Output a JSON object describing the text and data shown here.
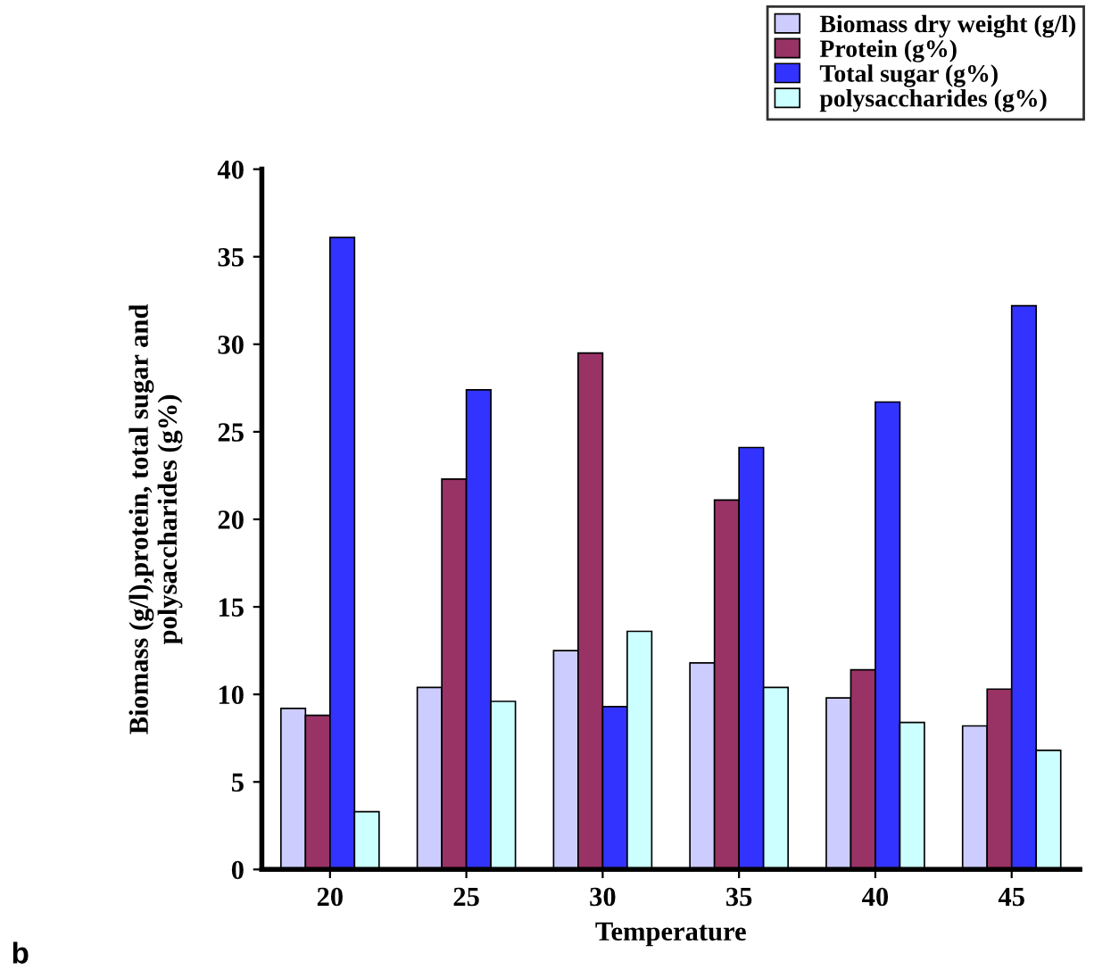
{
  "chart_data": {
    "type": "bar",
    "xlabel": "Temperature",
    "ylabel": "Biomass (g/l),protein, total sugar and\npolysaccharides (g%)",
    "categories": [
      "20",
      "25",
      "30",
      "35",
      "40",
      "45"
    ],
    "series": [
      {
        "name": "Biomass dry weight (g/l)",
        "color": "#ccccff",
        "values": [
          9.2,
          10.4,
          12.5,
          11.8,
          9.8,
          8.2
        ]
      },
      {
        "name": "Protein (g%)",
        "color": "#993366",
        "values": [
          8.8,
          22.3,
          29.5,
          21.1,
          11.4,
          10.3
        ]
      },
      {
        "name": "Total sugar (g%)",
        "color": "#3333ff",
        "values": [
          36.1,
          27.4,
          9.3,
          24.1,
          26.7,
          32.2
        ]
      },
      {
        "name": "polysaccharides (g%)",
        "color": "#ccffff",
        "values": [
          3.3,
          9.6,
          13.6,
          10.4,
          8.4,
          6.8
        ]
      }
    ],
    "ylim": [
      0,
      40
    ],
    "yticks": [
      0,
      5,
      10,
      15,
      20,
      25,
      30,
      35,
      40
    ],
    "grid": false,
    "legend": "top right",
    "annotations": [
      "b"
    ]
  }
}
